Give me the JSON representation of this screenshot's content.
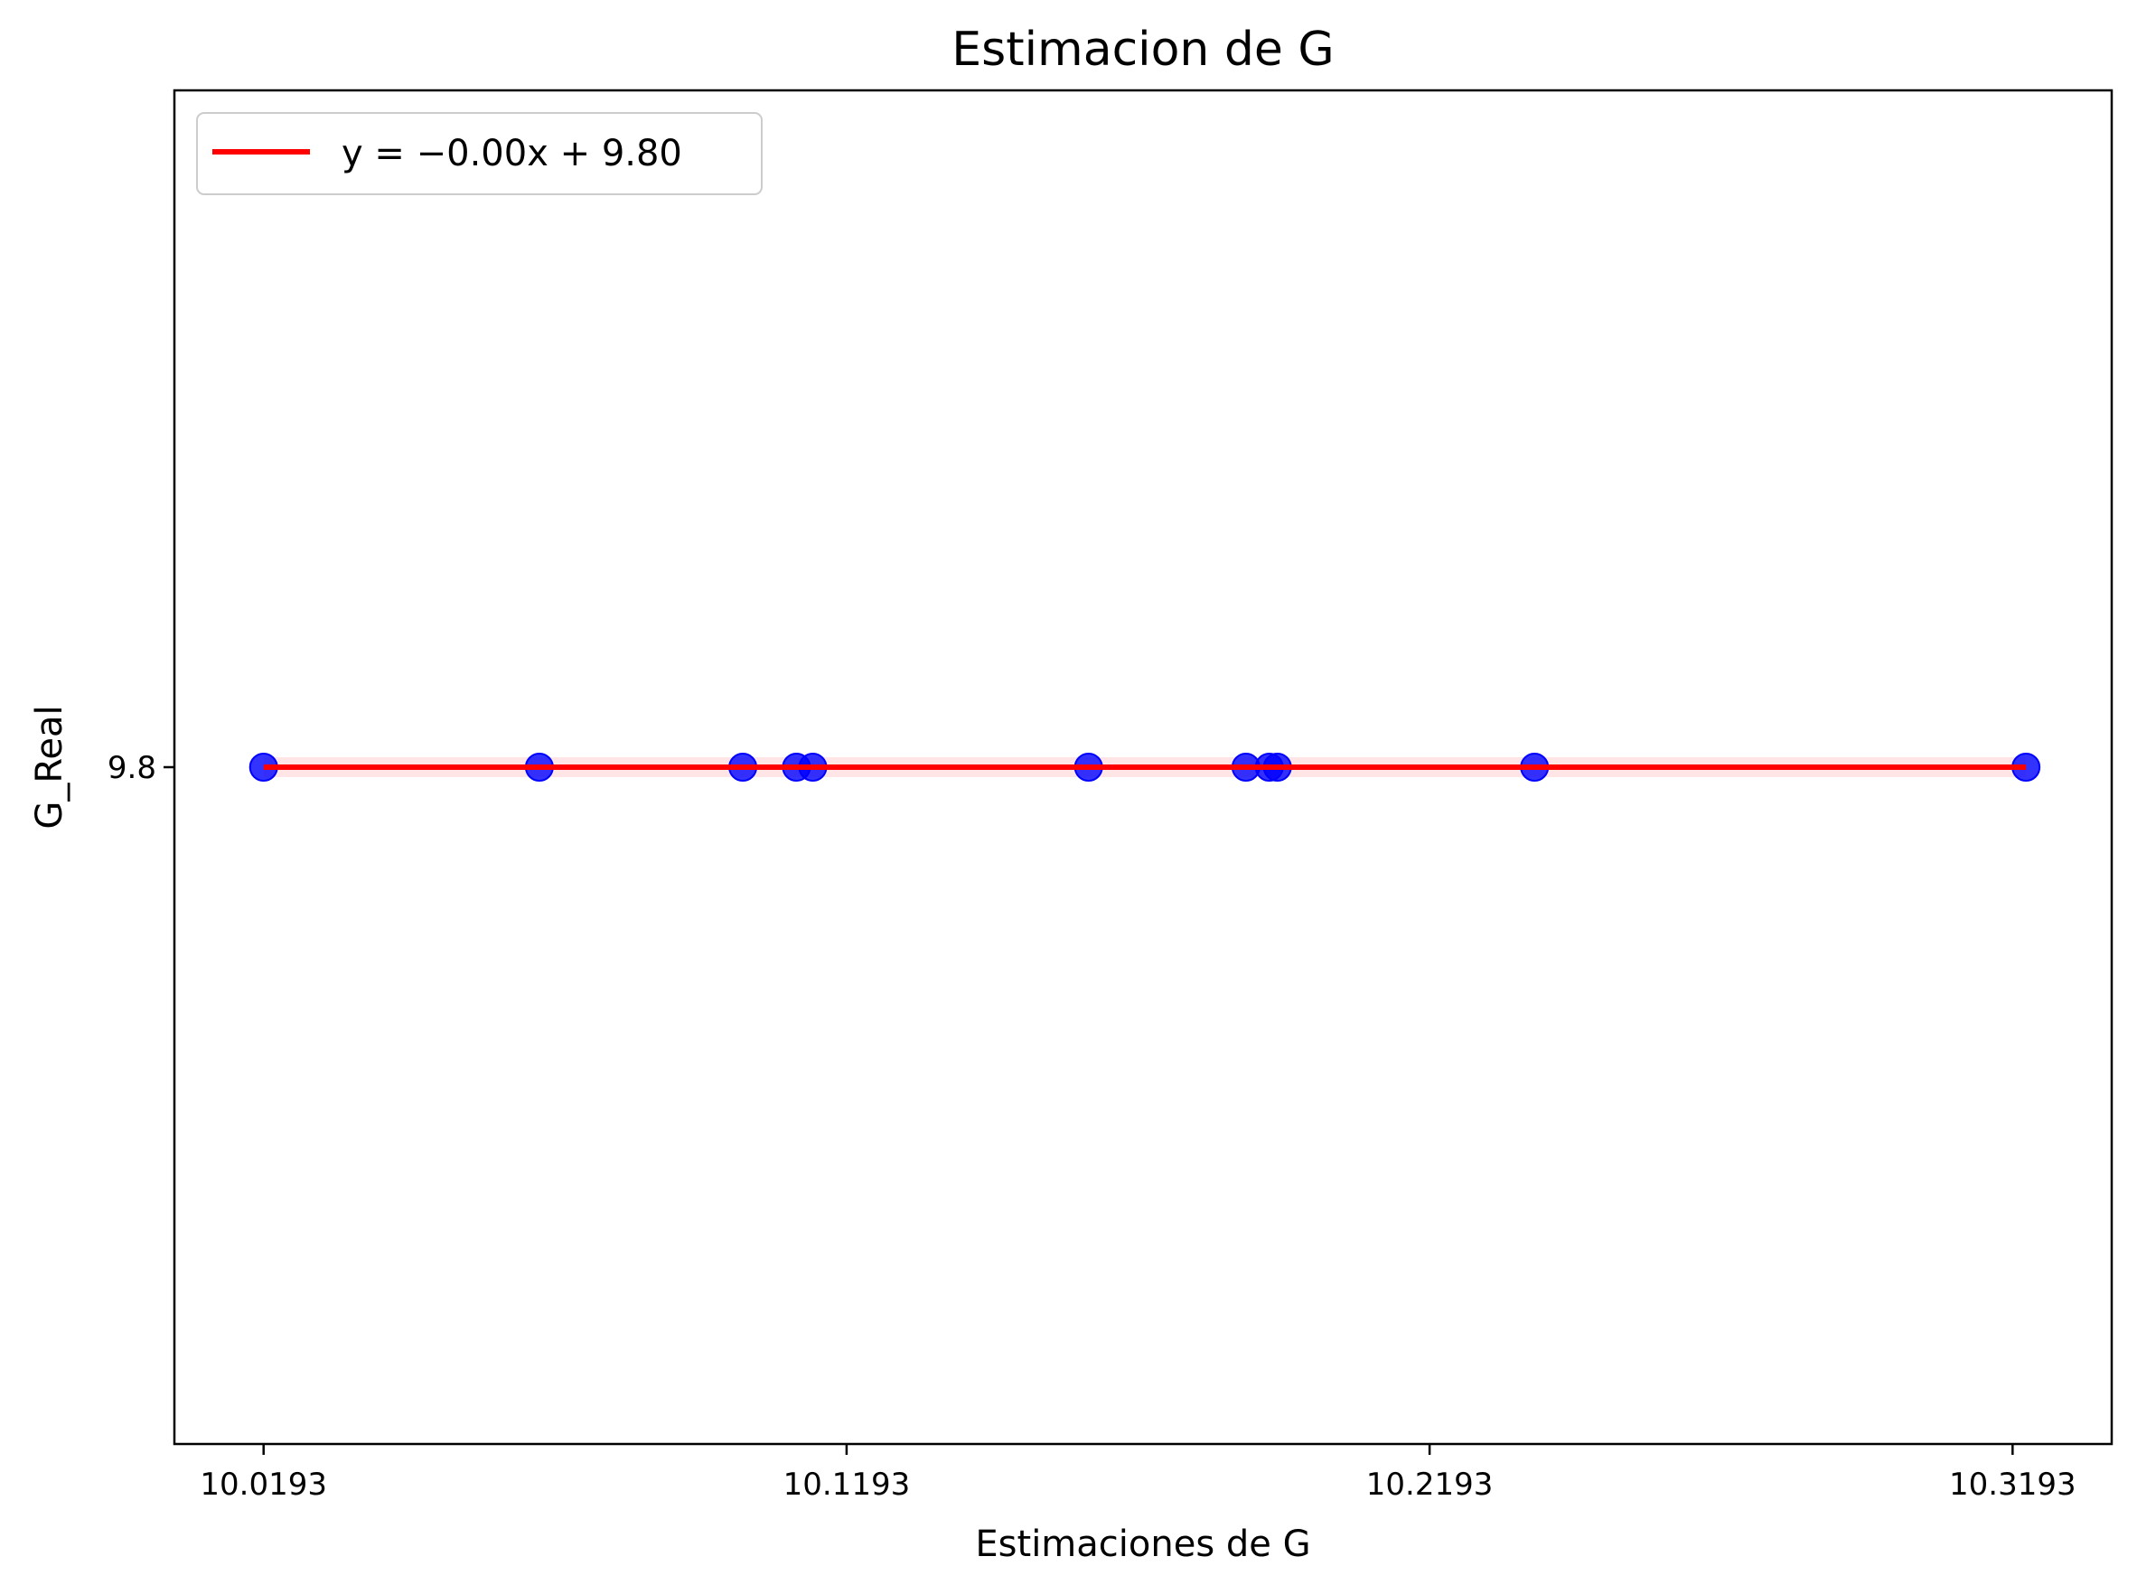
{
  "chart_data": {
    "type": "scatter",
    "title": "Estimacion de G",
    "xlabel": "Estimaciones de G",
    "ylabel": "G_Real",
    "xlim": [
      10.004,
      10.3363
    ],
    "ylim": [
      9.782,
      9.818
    ],
    "x_ticks": [
      "10.0193",
      "10.1193",
      "10.2193",
      "10.3193"
    ],
    "x_tick_values": [
      10.0193,
      10.1193,
      10.2193,
      10.3193
    ],
    "y_ticks": [
      "9.8"
    ],
    "y_tick_values": [
      9.8
    ],
    "grid": false,
    "legend": {
      "position": "top-left"
    },
    "series": [
      {
        "type": "scatter",
        "color": "#0000ff",
        "points": [
          {
            "x": 10.0193,
            "y": 9.8
          },
          {
            "x": 10.0666,
            "y": 9.8
          },
          {
            "x": 10.1015,
            "y": 9.8
          },
          {
            "x": 10.1107,
            "y": 9.8
          },
          {
            "x": 10.1135,
            "y": 9.8
          },
          {
            "x": 10.1608,
            "y": 9.8
          },
          {
            "x": 10.1878,
            "y": 9.8
          },
          {
            "x": 10.1918,
            "y": 9.8
          },
          {
            "x": 10.1932,
            "y": 9.8
          },
          {
            "x": 10.2373,
            "y": 9.8
          },
          {
            "x": 10.3216,
            "y": 9.8
          }
        ]
      },
      {
        "type": "line",
        "name": "y = −0.00x + 9.80",
        "color": "#ff0000",
        "x": [
          10.0193,
          10.3216
        ],
        "y": [
          9.8,
          9.8
        ]
      }
    ]
  }
}
